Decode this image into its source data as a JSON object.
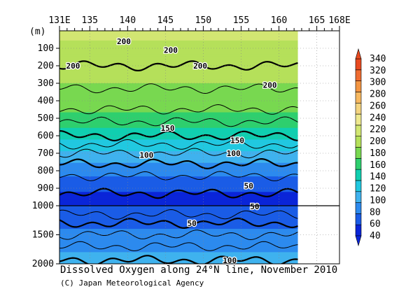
{
  "chart_data": {
    "type": "heatmap",
    "title": "Dissolved Oxygen along 24°N line, November 2010",
    "credit": "(C) Japan Meteorological Agency",
    "ylabel": "(m)",
    "x_ticks": [
      "131E",
      "135",
      "140",
      "145",
      "150",
      "155",
      "160",
      "165",
      "168E"
    ],
    "x_tick_values": [
      131,
      135,
      140,
      145,
      150,
      155,
      160,
      165,
      168
    ],
    "xlim": [
      131,
      168
    ],
    "data_xlim": [
      131,
      162.5
    ],
    "y_ticks_upper": [
      "100",
      "200",
      "300",
      "400",
      "500",
      "600",
      "700",
      "800",
      "900",
      "1000"
    ],
    "y_ticks_lower": [
      "1500",
      "2000"
    ],
    "y_tick_values_upper": [
      100,
      200,
      300,
      400,
      500,
      600,
      700,
      800,
      900,
      1000
    ],
    "y_tick_values_lower": [
      1500,
      2000
    ],
    "ylim": [
      0,
      2000
    ],
    "axis_break_depth": 1000,
    "colorbar": {
      "levels": [
        40,
        60,
        80,
        100,
        120,
        140,
        160,
        180,
        200,
        220,
        240,
        260,
        280,
        300,
        320,
        340
      ],
      "labels": [
        "340",
        "320",
        "300",
        "280",
        "260",
        "240",
        "220",
        "200",
        "180",
        "160",
        "140",
        "120",
        "100",
        "80",
        "60",
        "40"
      ],
      "colors": [
        "#0a25d8",
        "#1a5ce6",
        "#2c8aee",
        "#3fb2ee",
        "#21c8e0",
        "#10cfb0",
        "#2ecf6e",
        "#78d850",
        "#b5e05a",
        "#d2e672",
        "#eee88e",
        "#f4d480",
        "#f7b860",
        "#f39542",
        "#ef6c30",
        "#e84a20"
      ],
      "extend": "both"
    },
    "depth_profile": [
      {
        "depth": 0,
        "value": 225
      },
      {
        "depth": 100,
        "value": 215
      },
      {
        "depth": 300,
        "value": 200
      },
      {
        "depth": 450,
        "value": 185
      },
      {
        "depth": 550,
        "value": 160
      },
      {
        "depth": 650,
        "value": 130
      },
      {
        "depth": 750,
        "value": 100
      },
      {
        "depth": 850,
        "value": 75
      },
      {
        "depth": 950,
        "value": 55
      },
      {
        "depth": 1000,
        "value": 60
      },
      {
        "depth": 1300,
        "value": 75
      },
      {
        "depth": 1600,
        "value": 90
      },
      {
        "depth": 2000,
        "value": 110
      }
    ],
    "contour_labels": [
      {
        "lon": 139.5,
        "depth": 60,
        "text": "200"
      },
      {
        "lon": 132.8,
        "depth": 200,
        "text": "200"
      },
      {
        "lon": 145.7,
        "depth": 110,
        "text": "200"
      },
      {
        "lon": 149.6,
        "depth": 200,
        "text": "200"
      },
      {
        "lon": 158.8,
        "depth": 310,
        "text": "200"
      },
      {
        "lon": 145.3,
        "depth": 555,
        "text": "150"
      },
      {
        "lon": 154.5,
        "depth": 625,
        "text": "150"
      },
      {
        "lon": 142.5,
        "depth": 710,
        "text": "100"
      },
      {
        "lon": 154.0,
        "depth": 700,
        "text": "100"
      },
      {
        "lon": 156.0,
        "depth": 885,
        "text": "50"
      },
      {
        "lon": 156.8,
        "depth": 1015,
        "text": "50"
      },
      {
        "lon": 148.5,
        "depth": 1300,
        "text": "50"
      },
      {
        "lon": 153.5,
        "depth": 1940,
        "text": "100"
      }
    ]
  }
}
